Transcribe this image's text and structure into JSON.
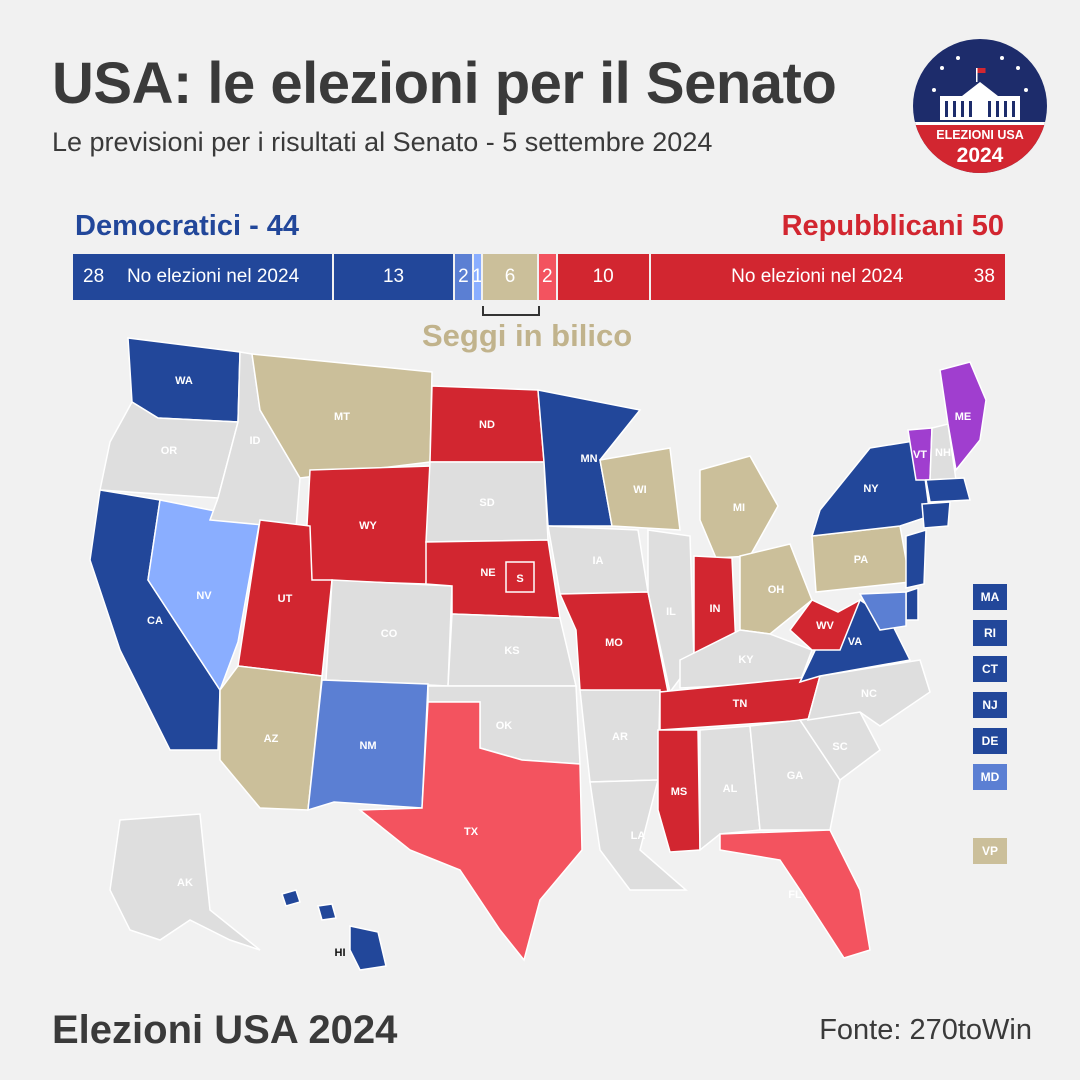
{
  "header": {
    "title": "USA: le elezioni per il Senato",
    "subtitle": "Le previsioni per i risultati al Senato - 5 settembre 2024"
  },
  "logo": {
    "line1": "ELEZIONI USA",
    "line2": "2024"
  },
  "totals": {
    "dem_label": "Democratici - 44",
    "rep_label": "Repubblicani 50"
  },
  "bar_segments": [
    {
      "num": "28",
      "text": "No elezioni nel 2024",
      "seats": 28,
      "kind": "dem-safe-noelect"
    },
    {
      "num": "13",
      "text": "",
      "seats": 13,
      "kind": "dem-safe"
    },
    {
      "num": "2",
      "text": "",
      "seats": 2,
      "kind": "dem-likely"
    },
    {
      "num": "1",
      "text": "",
      "seats": 1,
      "kind": "dem-lean"
    },
    {
      "num": "6",
      "text": "",
      "seats": 6,
      "kind": "tossup"
    },
    {
      "num": "2",
      "text": "",
      "seats": 2,
      "kind": "rep-likely"
    },
    {
      "num": "10",
      "text": "",
      "seats": 10,
      "kind": "rep-safe"
    },
    {
      "num": "38",
      "text": "No elezioni nel 2024",
      "seats": 38,
      "kind": "rep-safe-noelect"
    }
  ],
  "tossup_label": "Seggi in bilico",
  "colors": {
    "dem_safe": "#22479a",
    "dem_likely": "#5b7fd3",
    "dem_lean": "#8aaeff",
    "tossup": "#cbbf9a",
    "rep_likely": "#f3535f",
    "rep_safe": "#d22630",
    "no_election": "#dedede",
    "independent": "#a03ecf",
    "dem_text": "#22479a",
    "rep_text": "#d22630",
    "tossup_text": "#c1b38c"
  },
  "states": {
    "WA": "dem_safe",
    "OR": "no_election",
    "CA": "dem_safe",
    "NV": "dem_lean",
    "ID": "no_election",
    "MT": "tossup",
    "WY": "rep_safe",
    "UT": "rep_safe",
    "AZ": "tossup",
    "CO": "no_election",
    "NM": "dem_likely",
    "ND": "rep_safe",
    "SD": "no_election",
    "NE": "rep_safe",
    "KS": "no_election",
    "OK": "no_election",
    "TX": "rep_likely",
    "MN": "dem_safe",
    "IA": "no_election",
    "MO": "rep_safe",
    "AR": "no_election",
    "LA": "no_election",
    "WI": "tossup",
    "IL": "no_election",
    "MI": "tossup",
    "IN": "rep_safe",
    "OH": "tossup",
    "KY": "no_election",
    "TN": "rep_safe",
    "MS": "rep_safe",
    "AL": "no_election",
    "GA": "no_election",
    "FL": "rep_likely",
    "SC": "no_election",
    "NC": "no_election",
    "VA": "dem_safe",
    "WV": "rep_safe",
    "PA": "tossup",
    "NY": "dem_safe",
    "VT": "independent",
    "NH": "no_election",
    "ME": "independent",
    "AK": "no_election",
    "HI": "dem_safe"
  },
  "state_labels": [
    "WA",
    "OR",
    "CA",
    "NV",
    "ID",
    "MT",
    "WY",
    "UT",
    "AZ",
    "CO",
    "NM",
    "ND",
    "SD",
    "NE",
    "KS",
    "OK",
    "TX",
    "MN",
    "IA",
    "MO",
    "AR",
    "LA",
    "WI",
    "IL",
    "MI",
    "IN",
    "OH",
    "KY",
    "TN",
    "MS",
    "AL",
    "GA",
    "FL",
    "SC",
    "NC",
    "VA",
    "WV",
    "PA",
    "NY",
    "VT",
    "NH",
    "ME",
    "AK",
    "HI"
  ],
  "ne_special": "S",
  "legend_boxes": [
    {
      "label": "MA",
      "status": "dem_safe"
    },
    {
      "label": "RI",
      "status": "dem_safe"
    },
    {
      "label": "CT",
      "status": "dem_safe"
    },
    {
      "label": "NJ",
      "status": "dem_safe"
    },
    {
      "label": "DE",
      "status": "dem_safe"
    },
    {
      "label": "MD",
      "status": "dem_likely"
    },
    {
      "label": "VP",
      "status": "tossup"
    }
  ],
  "footer": {
    "left": "Elezioni USA 2024",
    "right": "Fonte: 270toWin"
  }
}
